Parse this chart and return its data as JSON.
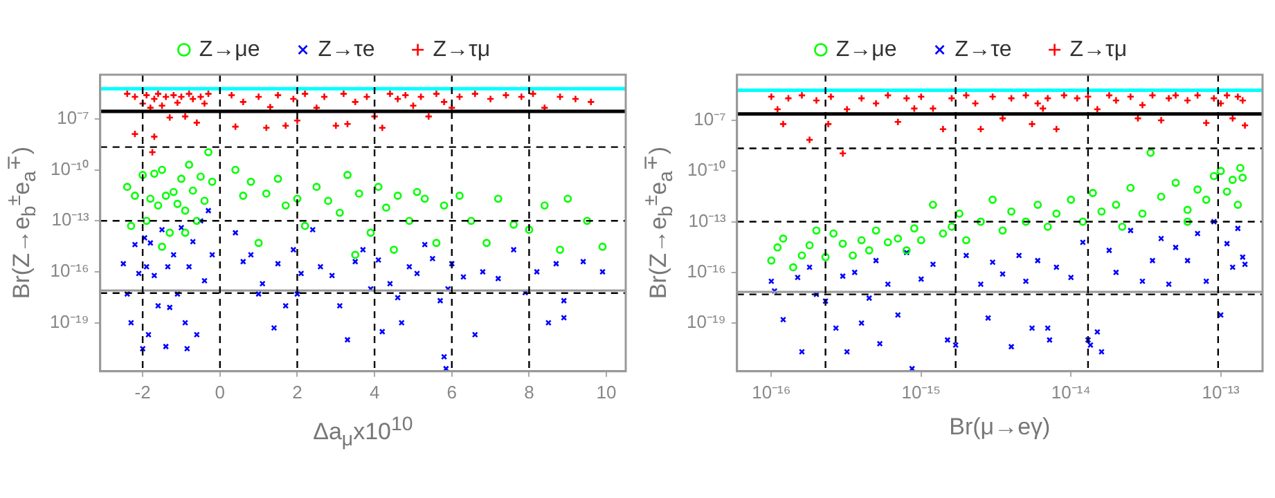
{
  "chart_data": [
    {
      "type": "scatter",
      "xlabel": "Δa$_{μ}$x10$^{10}$",
      "ylabel": "Br(Z→e$_{b}$$^{±}$e$_{a}$$^{∓}$)",
      "legend": "top",
      "log": "y",
      "xlim": [
        -3.1,
        10.5
      ],
      "ylim": [
        1.4e-22,
        4e-05
      ],
      "xticks": [
        -2,
        0,
        2,
        4,
        6,
        8,
        10
      ],
      "yticks": [
        {
          "value": 1e-07,
          "label": "10⁻⁷"
        },
        {
          "value": 1e-10,
          "label": "10⁻¹⁰"
        },
        {
          "value": 1e-13,
          "label": "10⁻¹³"
        },
        {
          "value": 1e-16,
          "label": "10⁻¹⁶"
        },
        {
          "value": 1e-19,
          "label": "10⁻¹⁹"
        }
      ],
      "series": [
        {
          "name": "Z→μe",
          "color": "#00ff00",
          "marker": "circle",
          "x": [
            -2.4,
            -2.2,
            -2.0,
            -1.9,
            -1.8,
            -1.7,
            -1.6,
            -1.5,
            -1.4,
            -1.3,
            -1.2,
            -1.1,
            -1.0,
            -0.9,
            -0.8,
            -0.7,
            -0.6,
            -0.5,
            -0.4,
            -0.3,
            -0.2,
            -2.3,
            -1.5,
            -0.9,
            0.4,
            0.6,
            0.8,
            1.0,
            1.2,
            1.5,
            1.7,
            2.0,
            2.2,
            2.5,
            2.8,
            3.1,
            3.3,
            3.6,
            3.9,
            4.1,
            4.3,
            4.6,
            4.9,
            5.1,
            5.3,
            5.6,
            5.8,
            6.2,
            6.5,
            6.9,
            7.2,
            7.6,
            8.0,
            8.4,
            8.8,
            9.0,
            9.5,
            9.9,
            3.5,
            4.5
          ],
          "values": [
            1e-11,
            3e-12,
            5e-11,
            1e-13,
            2e-12,
            6e-11,
            8e-13,
            1e-10,
            3e-12,
            2e-14,
            5e-12,
            1e-12,
            3e-11,
            4e-13,
            2e-10,
            6e-12,
            1e-13,
            4e-11,
            1.5e-12,
            1.1e-09,
            2e-11,
            5e-14,
            3e-15,
            2e-14,
            1e-10,
            3e-12,
            2e-11,
            5e-15,
            4e-12,
            3e-11,
            8e-13,
            2e-12,
            5e-14,
            1e-11,
            1.5e-12,
            3e-13,
            5e-11,
            4e-12,
            2e-14,
            1e-11,
            6e-13,
            3e-12,
            1e-13,
            5e-12,
            2e-12,
            5e-15,
            8e-13,
            3e-12,
            1e-13,
            5e-15,
            2e-12,
            6e-14,
            3e-14,
            8e-13,
            2e-15,
            2e-12,
            1e-13,
            3e-15,
            1e-15,
            2e-15
          ]
        },
        {
          "name": "Z→τe",
          "color": "#0000ff",
          "marker": "cross",
          "x": [
            -2.5,
            -2.4,
            -2.3,
            -2.2,
            -2.1,
            -2.0,
            -1.95,
            -1.9,
            -1.85,
            -1.8,
            -1.7,
            -1.6,
            -1.5,
            -1.4,
            -1.35,
            -1.3,
            -1.2,
            -1.1,
            -1.0,
            -0.9,
            -0.85,
            -0.8,
            -0.7,
            -0.6,
            -0.5,
            -0.4,
            -0.3,
            -0.2,
            0.4,
            0.6,
            0.8,
            1.0,
            1.1,
            1.4,
            1.5,
            1.7,
            1.9,
            2.1,
            2.4,
            2.6,
            2.9,
            3.1,
            3.3,
            3.5,
            3.7,
            3.9,
            4.1,
            4.2,
            4.4,
            4.6,
            4.7,
            4.9,
            5.1,
            5.3,
            5.5,
            5.7,
            5.8,
            5.85,
            6.0,
            6.3,
            6.6,
            6.8,
            7.2,
            7.6,
            7.9,
            8.2,
            8.5,
            8.7,
            8.9,
            8.9,
            9.4,
            9.9,
            5.9,
            2.0
          ],
          "values": [
            3e-16,
            5e-18,
            1e-19,
            4e-15,
            8e-17,
            3e-21,
            1e-14,
            2e-16,
            2e-20,
            5e-15,
            6e-17,
            1e-18,
            3e-14,
            4e-21,
            2e-16,
            8e-19,
            1e-15,
            5e-18,
            4e-14,
            1e-19,
            3e-21,
            2e-16,
            6e-15,
            2e-20,
            1e-13,
            3e-17,
            4e-13,
            1e-15,
            2e-14,
            4e-16,
            1e-15,
            5e-18,
            2e-17,
            5e-20,
            3e-16,
            1e-18,
            2e-15,
            8e-17,
            3e-14,
            2e-16,
            6e-17,
            1e-18,
            1e-20,
            4e-16,
            2e-15,
            1e-17,
            5e-16,
            3e-20,
            2e-17,
            3e-18,
            1e-19,
            2e-16,
            8e-17,
            4e-15,
            6e-16,
            2e-18,
            1e-21,
            2e-22,
            3e-16,
            5e-17,
            2e-20,
            1e-16,
            4e-17,
            2e-15,
            6e-18,
            1e-16,
            1e-19,
            3e-16,
            2e-18,
            2e-19,
            4e-16,
            1e-16,
            1e-17,
            5e-18
          ]
        },
        {
          "name": "Z→τμ",
          "color": "#ff0000",
          "marker": "plus",
          "x": [
            -2.4,
            -2.2,
            -2.0,
            -1.9,
            -1.8,
            -1.7,
            -1.6,
            -1.5,
            -1.4,
            -1.3,
            -1.2,
            -1.1,
            -1.0,
            -0.9,
            -0.8,
            -0.7,
            -0.6,
            -0.5,
            -0.4,
            -0.3,
            -2.2,
            -1.7,
            -1.75,
            0.3,
            0.4,
            0.6,
            1.0,
            1.3,
            1.5,
            1.7,
            1.9,
            2.2,
            2.5,
            2.7,
            3.0,
            3.2,
            3.5,
            3.8,
            4.0,
            4.2,
            4.4,
            4.6,
            4.8,
            5.0,
            5.2,
            5.4,
            5.6,
            5.8,
            6.2,
            6.6,
            7.0,
            7.4,
            7.8,
            8.1,
            8.4,
            8.8,
            9.2,
            9.6,
            6.0,
            2.0,
            1.2,
            3.3
          ],
          "values": [
            3e-06,
            2e-06,
            8e-07,
            2.5e-06,
            4.5e-07,
            1.5e-06,
            3e-06,
            6e-07,
            2e-06,
            1.2e-07,
            2.5e-06,
            9e-07,
            2e-06,
            1.4e-07,
            3e-06,
            1.5e-06,
            6e-08,
            2e-06,
            8e-07,
            3e-06,
            1.3e-08,
            9e-09,
            1.1e-09,
            2.5e-06,
            3.5e-08,
            1e-06,
            2e-06,
            5e-07,
            2.5e-06,
            4e-08,
            1.5e-06,
            3e-06,
            4.5e-07,
            2e-06,
            4e-08,
            3e-06,
            1e-06,
            2e-06,
            1.4e-07,
            3e-08,
            3e-06,
            1.5e-06,
            2.5e-06,
            6e-07,
            2e-06,
            1.4e-07,
            3e-06,
            1e-06,
            2e-06,
            3e-06,
            1.5e-06,
            2.5e-06,
            2e-06,
            3e-06,
            4.5e-07,
            2e-06,
            1.5e-06,
            1e-06,
            4.5e-07,
            8e-08,
            3e-08,
            5e-08
          ]
        }
      ],
      "ref_lines": [
        {
          "axis": "y",
          "value": 6e-06,
          "color": "#00ffff",
          "line_style": "solid"
        },
        {
          "axis": "y",
          "value": 2.8e-07,
          "color": "#000000",
          "line_style": "solid"
        },
        {
          "axis": "y",
          "value": 2.2e-09,
          "color": "#000000",
          "line_style": "dashed"
        },
        {
          "axis": "y",
          "value": 1e-13,
          "color": "#000000",
          "line_style": "dashed"
        },
        {
          "axis": "y",
          "value": 8e-18,
          "color": "#999999",
          "line_style": "solid"
        },
        {
          "axis": "y",
          "value": 5.6e-18,
          "color": "#000000",
          "line_style": "dashed"
        },
        {
          "axis": "x",
          "value": -2,
          "color": "#000000",
          "line_style": "dashed"
        },
        {
          "axis": "x",
          "value": 0,
          "color": "#000000",
          "line_style": "dashed"
        },
        {
          "axis": "x",
          "value": 2,
          "color": "#000000",
          "line_style": "dashed"
        },
        {
          "axis": "x",
          "value": 4,
          "color": "#000000",
          "line_style": "dashed"
        },
        {
          "axis": "x",
          "value": 6,
          "color": "#000000",
          "line_style": "dashed"
        },
        {
          "axis": "x",
          "value": 8,
          "color": "#000000",
          "line_style": "dashed"
        }
      ]
    },
    {
      "type": "scatter",
      "xlabel": "Br(μ→eγ)",
      "ylabel": "Br(Z→e$_{b}$$^{±}$e$_{a}$$^{∓}$)",
      "legend": "top",
      "log": "xy",
      "xlim": [
        5.9e-17,
        1.9e-13
      ],
      "ylim": [
        1.4e-22,
        5e-05
      ],
      "xticks": [
        {
          "value": 1e-16,
          "label": "10⁻¹⁶"
        },
        {
          "value": 1e-15,
          "label": "10⁻¹⁵"
        },
        {
          "value": 1e-14,
          "label": "10⁻¹⁴"
        },
        {
          "value": 1e-13,
          "label": "10⁻¹³"
        }
      ],
      "yticks": [
        {
          "value": 1e-07,
          "label": "10⁻⁷"
        },
        {
          "value": 1e-10,
          "label": "10⁻¹⁰"
        },
        {
          "value": 1e-13,
          "label": "10⁻¹³"
        },
        {
          "value": 1e-16,
          "label": "10⁻¹⁶"
        },
        {
          "value": 1e-19,
          "label": "10⁻¹⁹"
        }
      ],
      "series": [
        {
          "name": "Z→μe",
          "color": "#00ff00",
          "marker": "circle",
          "x": [
            1e-16,
            1.1e-16,
            1.2e-16,
            1.4e-16,
            1.6e-16,
            1.8e-16,
            2e-16,
            2.3e-16,
            2.6e-16,
            3e-16,
            3.5e-16,
            4e-16,
            4.5e-16,
            5e-16,
            6e-16,
            7e-16,
            8e-16,
            9e-16,
            1e-15,
            1.2e-15,
            1.4e-15,
            1.6e-15,
            1.8e-15,
            2e-15,
            2.5e-15,
            3e-15,
            3.5e-15,
            4e-15,
            5e-15,
            6e-15,
            7e-15,
            8e-15,
            1e-14,
            1.2e-14,
            1.4e-14,
            1.6e-14,
            2e-14,
            2.5e-14,
            3e-14,
            3.4e-14,
            4e-14,
            5e-14,
            6e-14,
            7e-14,
            8e-14,
            9e-14,
            1e-13,
            1.1e-13,
            1.2e-13,
            1.3e-13,
            1.4e-13,
            1.35e-13,
            6e-14,
            2.2e-14
          ],
          "values": [
            5e-16,
            3e-15,
            1e-14,
            2e-16,
            1e-15,
            4e-15,
            3e-14,
            8e-16,
            2e-14,
            5e-15,
            1e-15,
            8e-15,
            2e-15,
            3e-14,
            6e-15,
            1e-14,
            2e-15,
            4e-14,
            8e-15,
            1e-12,
            2e-14,
            5e-14,
            3e-13,
            8e-15,
            1e-13,
            2e-12,
            3e-14,
            4e-13,
            1e-13,
            1e-12,
            5e-14,
            3e-13,
            2e-12,
            1e-13,
            5e-12,
            4e-13,
            1e-12,
            1e-11,
            3e-13,
            1.2e-09,
            3e-12,
            2e-11,
            5e-13,
            8e-12,
            2e-12,
            5e-11,
            1e-10,
            6e-12,
            3e-11,
            1e-12,
            4e-11,
            1.5e-10,
            1e-13,
            5e-14
          ]
        },
        {
          "name": "Z→τe",
          "color": "#0000ff",
          "marker": "cross",
          "x": [
            1e-16,
            1.05e-16,
            1.2e-16,
            1.6e-16,
            1.5e-16,
            1.8e-16,
            2e-16,
            2.3e-16,
            2.7e-16,
            3e-16,
            3.2e-16,
            3.6e-16,
            4e-16,
            4.5e-16,
            5e-16,
            5.3e-16,
            6e-16,
            7e-16,
            8.7e-16,
            8e-16,
            1e-15,
            1.2e-15,
            1.5e-15,
            1.7e-15,
            2e-15,
            2.5e-15,
            2.8e-15,
            3e-15,
            3.5e-15,
            4e-15,
            4.5e-15,
            5e-15,
            5.5e-15,
            6e-15,
            7e-15,
            7.2e-15,
            8e-15,
            1e-14,
            1.2e-14,
            1.3e-14,
            1.35e-14,
            1.5e-14,
            1.6e-14,
            1.8e-14,
            2e-14,
            2.5e-14,
            3e-14,
            3.5e-14,
            4e-14,
            4.5e-14,
            5e-14,
            6e-14,
            7e-14,
            8e-14,
            9e-14,
            1e-13,
            1.1e-13,
            1.2e-13,
            1.3e-13,
            1.4e-13,
            1.45e-13
          ],
          "values": [
            3e-17,
            8e-18,
            1.6e-19,
            2e-21,
            5e-17,
            2e-16,
            5e-18,
            2e-18,
            5e-20,
            6e-17,
            2e-21,
            1e-16,
            1e-19,
            3e-18,
            5e-16,
            6e-21,
            2e-17,
            3e-19,
            2e-22,
            1.5e-15,
            4e-17,
            3e-16,
            1e-20,
            5e-21,
            1e-15,
            2e-17,
            2e-19,
            4e-16,
            8e-17,
            4e-21,
            1e-15,
            3e-17,
            5e-20,
            5e-16,
            5e-20,
            1e-20,
            2e-16,
            5e-17,
            6e-15,
            1e-20,
            5e-21,
            3e-20,
            2e-21,
            2e-15,
            1e-16,
            3e-14,
            3e-17,
            5e-16,
            1e-14,
            2e-17,
            3e-15,
            5e-16,
            2e-14,
            3e-17,
            1e-13,
            3e-19,
            5e-15,
            2e-16,
            4e-14,
            8e-16,
            3e-16
          ]
        },
        {
          "name": "Z→τμ",
          "color": "#ff0000",
          "marker": "plus",
          "x": [
            1e-16,
            1.1e-16,
            1.3e-16,
            1.2e-16,
            1.6e-16,
            1.8e-16,
            2e-16,
            2.5e-16,
            2.4e-16,
            3e-16,
            3.2e-16,
            4e-16,
            5e-16,
            6e-16,
            7e-16,
            8e-16,
            1e-15,
            1.2e-15,
            1.4e-15,
            1.6e-15,
            2e-15,
            2.3e-15,
            2.5e-15,
            3e-15,
            3.5e-15,
            4e-15,
            5e-15,
            5.5e-15,
            6e-15,
            7e-15,
            8e-15,
            9e-15,
            1.1e-14,
            1.3e-14,
            1.5e-14,
            1.8e-14,
            2e-14,
            2.5e-14,
            3e-14,
            3.5e-14,
            4e-14,
            4.5e-14,
            5e-14,
            6e-14,
            7e-14,
            8e-14,
            9e-14,
            1e-13,
            1.1e-13,
            1.2e-13,
            1.3e-13,
            1.45e-13,
            1.4e-13,
            6.5e-15,
            2.8e-14,
            9e-16
          ],
          "values": [
            2.5e-06,
            4.5e-07,
            2e-06,
            6e-08,
            3e-06,
            7e-09,
            1.5e-06,
            2.5e-06,
            6e-08,
            1.1e-09,
            4.5e-07,
            2e-06,
            1e-06,
            3e-06,
            8e-08,
            2e-06,
            2.5e-06,
            5e-07,
            3e-08,
            2e-06,
            3e-06,
            1e-06,
            3e-08,
            2.5e-06,
            1.3e-07,
            2e-06,
            3e-06,
            6e-08,
            1e-06,
            2e-06,
            3e-08,
            3e-06,
            2e-06,
            2.5e-06,
            4.5e-07,
            3e-06,
            1.5e-06,
            2.5e-06,
            8e-07,
            3e-06,
            1e-07,
            2e-06,
            3e-06,
            1.5e-06,
            3e-06,
            7e-08,
            2e-06,
            1e-06,
            3e-06,
            1.3e-07,
            2.5e-06,
            5e-08,
            1.5e-06,
            5e-07,
            1.3e-07,
            5e-07
          ]
        }
      ],
      "ref_lines": [
        {
          "axis": "y",
          "value": 6e-06,
          "color": "#00ffff",
          "line_style": "solid"
        },
        {
          "axis": "y",
          "value": 2.4e-07,
          "color": "#000000",
          "line_style": "solid"
        },
        {
          "axis": "y",
          "value": 2.2e-09,
          "color": "#000000",
          "line_style": "dashed"
        },
        {
          "axis": "y",
          "value": 1e-13,
          "color": "#000000",
          "line_style": "dashed"
        },
        {
          "axis": "y",
          "value": 7e-18,
          "color": "#999999",
          "line_style": "solid"
        },
        {
          "axis": "y",
          "value": 5e-18,
          "color": "#000000",
          "line_style": "dashed"
        },
        {
          "axis": "x",
          "value": 2.3e-16,
          "color": "#000000",
          "line_style": "dashed"
        },
        {
          "axis": "x",
          "value": 1.7e-15,
          "color": "#000000",
          "line_style": "dashed"
        },
        {
          "axis": "x",
          "value": 1.3e-14,
          "color": "#000000",
          "line_style": "dashed"
        },
        {
          "axis": "x",
          "value": 9.6e-14,
          "color": "#000000",
          "line_style": "dashed"
        }
      ]
    }
  ]
}
